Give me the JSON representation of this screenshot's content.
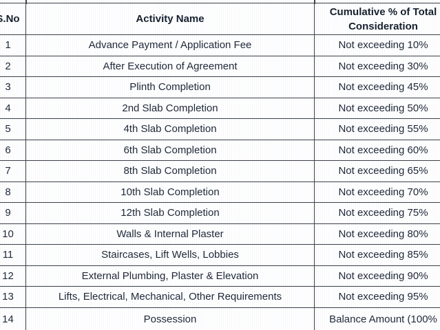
{
  "colors": {
    "border": "#3a3f48",
    "text": "#1e2838",
    "header_text": "#16202e",
    "background": "#ffffff"
  },
  "table": {
    "header": {
      "s_no": "S.No",
      "activity": "Activity Name",
      "cumulative": "Cumulative % of Total Consideration"
    },
    "rows": [
      {
        "s_no": "1",
        "activity": "Advance Payment / Application Fee",
        "cumulative": "Not exceeding 10%"
      },
      {
        "s_no": "2",
        "activity": "After Execution of Agreement",
        "cumulative": "Not exceeding 30%"
      },
      {
        "s_no": "3",
        "activity": "Plinth Completion",
        "cumulative": "Not exceeding 45%"
      },
      {
        "s_no": "4",
        "activity": "2nd Slab Completion",
        "cumulative": "Not exceeding 50%"
      },
      {
        "s_no": "5",
        "activity": "4th Slab Completion",
        "cumulative": "Not exceeding 55%"
      },
      {
        "s_no": "6",
        "activity": "6th Slab Completion",
        "cumulative": "Not exceeding 60%"
      },
      {
        "s_no": "7",
        "activity": "8th Slab Completion",
        "cumulative": "Not exceeding 65%"
      },
      {
        "s_no": "8",
        "activity": "10th Slab Completion",
        "cumulative": "Not exceeding 70%"
      },
      {
        "s_no": "9",
        "activity": "12th Slab Completion",
        "cumulative": "Not exceeding 75%"
      },
      {
        "s_no": "10",
        "activity": "Walls & Internal Plaster",
        "cumulative": "Not exceeding 80%"
      },
      {
        "s_no": "11",
        "activity": "Staircases, Lift Wells, Lobbies",
        "cumulative": "Not exceeding 85%"
      },
      {
        "s_no": "12",
        "activity": "External Plumbing, Plaster & Elevation",
        "cumulative": "Not exceeding 90%"
      },
      {
        "s_no": "13",
        "activity": "Lifts, Electrical, Mechanical, Other Requirements",
        "cumulative": "Not exceeding 95%"
      },
      {
        "s_no": "14",
        "activity": "Possession",
        "cumulative": "Balance Amount (100%"
      }
    ]
  }
}
